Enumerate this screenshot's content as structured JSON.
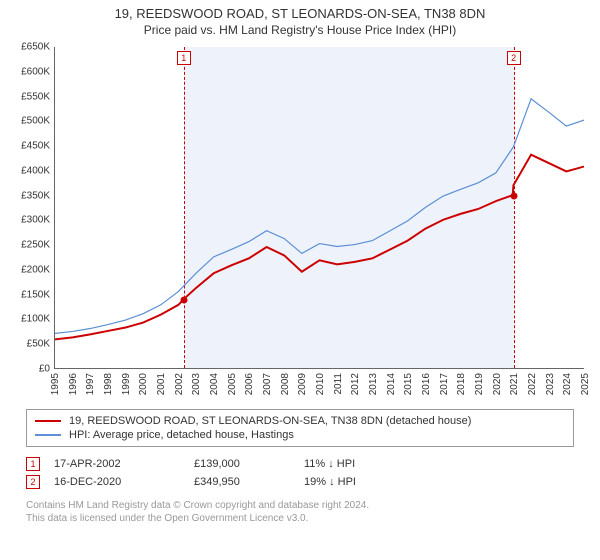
{
  "title": {
    "line1": "19, REEDSWOOD ROAD, ST LEONARDS-ON-SEA, TN38 8DN",
    "line2": "Price paid vs. HM Land Registry's House Price Index (HPI)"
  },
  "chart": {
    "type": "line",
    "background_color": "#ffffff",
    "band_color": "#eef2fa",
    "x": {
      "min": 1995,
      "max": 2025,
      "tick_step": 1
    },
    "y": {
      "min": 0,
      "max": 650000,
      "tick_step": 50000,
      "tick_format_prefix": "£",
      "tick_format_suffix": "K",
      "tick_format_divisor": 1000
    },
    "band": {
      "start": 2002.29,
      "end": 2020.96
    },
    "vlines": [
      2002.29,
      2020.96
    ],
    "series": [
      {
        "name": "property",
        "label": "19, REEDSWOOD ROAD, ST LEONARDS-ON-SEA, TN38 8DN (detached house)",
        "color": "#cc0000",
        "width": 2,
        "points": [
          [
            1995,
            58000
          ],
          [
            1996,
            62000
          ],
          [
            1997,
            68000
          ],
          [
            1998,
            75000
          ],
          [
            1999,
            82000
          ],
          [
            2000,
            92000
          ],
          [
            2001,
            108000
          ],
          [
            2002,
            128000
          ],
          [
            2002.29,
            139000
          ],
          [
            2003,
            162000
          ],
          [
            2004,
            192000
          ],
          [
            2005,
            208000
          ],
          [
            2006,
            222000
          ],
          [
            2007,
            245000
          ],
          [
            2008,
            228000
          ],
          [
            2009,
            195000
          ],
          [
            2010,
            218000
          ],
          [
            2011,
            210000
          ],
          [
            2012,
            215000
          ],
          [
            2013,
            222000
          ],
          [
            2014,
            240000
          ],
          [
            2015,
            258000
          ],
          [
            2016,
            282000
          ],
          [
            2017,
            300000
          ],
          [
            2018,
            312000
          ],
          [
            2019,
            322000
          ],
          [
            2020,
            338000
          ],
          [
            2020.96,
            349950
          ],
          [
            2021,
            370000
          ],
          [
            2022,
            432000
          ],
          [
            2023,
            415000
          ],
          [
            2024,
            398000
          ],
          [
            2025,
            408000
          ]
        ]
      },
      {
        "name": "hpi",
        "label": "HPI: Average price, detached house, Hastings",
        "color": "#5b8fd6",
        "width": 1.2,
        "points": [
          [
            1995,
            70000
          ],
          [
            1996,
            74000
          ],
          [
            1997,
            80000
          ],
          [
            1998,
            88000
          ],
          [
            1999,
            97000
          ],
          [
            2000,
            110000
          ],
          [
            2001,
            128000
          ],
          [
            2002,
            155000
          ],
          [
            2003,
            192000
          ],
          [
            2004,
            225000
          ],
          [
            2005,
            240000
          ],
          [
            2006,
            256000
          ],
          [
            2007,
            278000
          ],
          [
            2008,
            262000
          ],
          [
            2009,
            232000
          ],
          [
            2010,
            252000
          ],
          [
            2011,
            246000
          ],
          [
            2012,
            250000
          ],
          [
            2013,
            258000
          ],
          [
            2014,
            278000
          ],
          [
            2015,
            298000
          ],
          [
            2016,
            325000
          ],
          [
            2017,
            348000
          ],
          [
            2018,
            362000
          ],
          [
            2019,
            375000
          ],
          [
            2020,
            395000
          ],
          [
            2021,
            448000
          ],
          [
            2022,
            545000
          ],
          [
            2023,
            518000
          ],
          [
            2024,
            490000
          ],
          [
            2025,
            502000
          ]
        ]
      }
    ],
    "markers": [
      {
        "num": "1",
        "x": 2002.29,
        "y": 139000
      },
      {
        "num": "2",
        "x": 2020.96,
        "y": 349950
      }
    ],
    "marker_box_y_offset": -10
  },
  "legend": {
    "rows": [
      {
        "color": "#cc0000",
        "width": 2,
        "text": "19, REEDSWOOD ROAD, ST LEONARDS-ON-SEA, TN38 8DN (detached house)"
      },
      {
        "color": "#5b8fd6",
        "width": 1.2,
        "text": "HPI: Average price, detached house, Hastings"
      }
    ]
  },
  "transactions": [
    {
      "num": "1",
      "date": "17-APR-2002",
      "price": "£139,000",
      "delta": "11% ↓ HPI"
    },
    {
      "num": "2",
      "date": "16-DEC-2020",
      "price": "£349,950",
      "delta": "19% ↓ HPI"
    }
  ],
  "footnote": {
    "line1": "Contains HM Land Registry data © Crown copyright and database right 2024.",
    "line2": "This data is licensed under the Open Government Licence v3.0."
  }
}
